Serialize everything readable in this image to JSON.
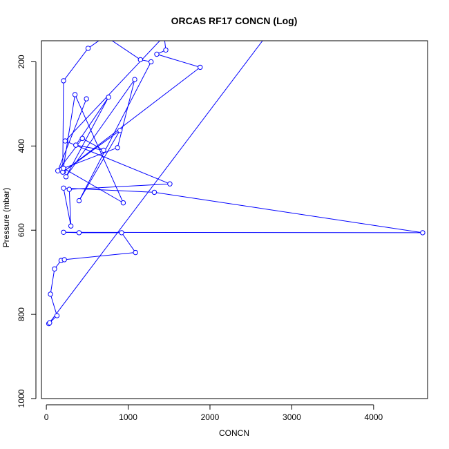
{
  "chart_data": {
    "type": "scatter",
    "title": "ORCAS RF17 CONCN (Log)",
    "xlabel": "CONCN",
    "ylabel": "Pressure (mbar)",
    "xlim": [
      -60,
      4660
    ],
    "ylim": [
      1000,
      150
    ],
    "y_reversed": true,
    "x_ticks": [
      0,
      1000,
      2000,
      3000,
      4000
    ],
    "y_ticks": [
      200,
      400,
      600,
      800,
      1000
    ],
    "x_tick_labels": [
      "0",
      "1000",
      "2000",
      "3000",
      "4000"
    ],
    "y_tick_labels": [
      "200",
      "400",
      "600",
      "800",
      "1000"
    ],
    "grid": false,
    "legend": "none",
    "series_color": "#0000ff",
    "marker": "open-circle",
    "connect_points": true,
    "points_offscreen_start": [
      [
        2650,
        148
      ]
    ],
    "points": [
      [
        30,
        822
      ],
      [
        40,
        820
      ],
      [
        130,
        803
      ],
      [
        50,
        752
      ],
      [
        100,
        692
      ],
      [
        180,
        672
      ],
      [
        220,
        670
      ],
      [
        1090,
        653
      ],
      [
        920,
        606
      ],
      [
        400,
        606
      ],
      [
        210,
        605
      ],
      [
        4600,
        606
      ],
      [
        1320,
        510
      ],
      [
        210,
        500
      ],
      [
        300,
        590
      ],
      [
        280,
        503
      ],
      [
        1510,
        490
      ],
      [
        230,
        388
      ],
      [
        1440,
        139
      ],
      [
        1460,
        172
      ],
      [
        1350,
        182
      ],
      [
        1880,
        213
      ],
      [
        210,
        461
      ],
      [
        900,
        363
      ],
      [
        400,
        530
      ],
      [
        1280,
        200
      ],
      [
        1150,
        195
      ],
      [
        720,
        139
      ],
      [
        510,
        168
      ],
      [
        210,
        245
      ],
      [
        200,
        462
      ],
      [
        350,
        278
      ],
      [
        940,
        535
      ],
      [
        210,
        453
      ],
      [
        870,
        404
      ],
      [
        1080,
        242
      ],
      [
        240,
        473
      ],
      [
        760,
        284
      ],
      [
        360,
        398
      ],
      [
        700,
        410
      ],
      [
        440,
        382
      ],
      [
        140,
        459
      ],
      [
        490,
        288
      ]
    ]
  }
}
